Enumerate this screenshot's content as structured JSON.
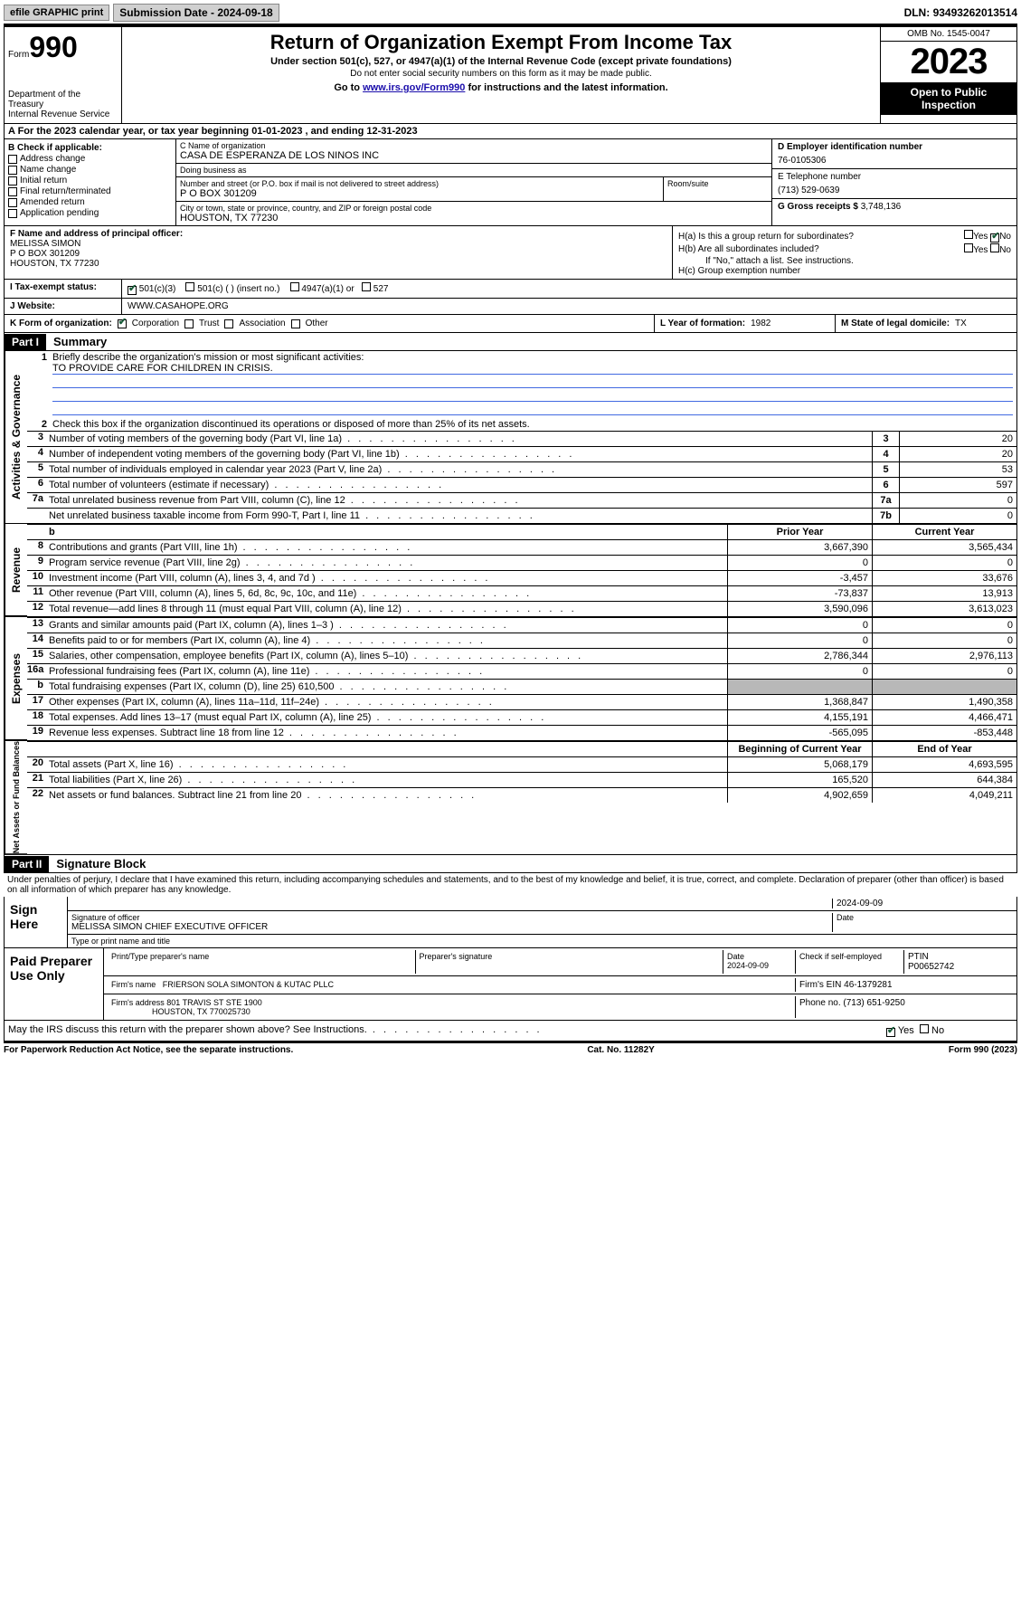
{
  "topbar": {
    "efile": "efile GRAPHIC print",
    "subdate_label": "Submission Date - ",
    "subdate": "2024-09-18",
    "dln_label": "DLN: ",
    "dln": "93493262013514"
  },
  "header": {
    "form_prefix": "Form",
    "form_no": "990",
    "dept": "Department of the Treasury\nInternal Revenue Service",
    "title": "Return of Organization Exempt From Income Tax",
    "sub1": "Under section 501(c), 527, or 4947(a)(1) of the Internal Revenue Code (except private foundations)",
    "sub2": "Do not enter social security numbers on this form as it may be made public.",
    "goto_pre": "Go to ",
    "goto_link": "www.irs.gov/Form990",
    "goto_post": " for instructions and the latest information.",
    "omb": "OMB No. 1545-0047",
    "year": "2023",
    "otp": "Open to Public Inspection"
  },
  "rowA": {
    "text": "A For the 2023 calendar year, or tax year beginning 01-01-2023   , and ending 12-31-2023"
  },
  "B": {
    "label": "B Check if applicable:",
    "items": [
      "Address change",
      "Name change",
      "Initial return",
      "Final return/terminated",
      "Amended return",
      "Application pending"
    ]
  },
  "C": {
    "name_label": "C Name of organization",
    "name": "CASA DE ESPERANZA DE LOS NINOS INC",
    "dba_label": "Doing business as",
    "dba": "",
    "addr_label": "Number and street (or P.O. box if mail is not delivered to street address)",
    "room_label": "Room/suite",
    "addr": "P O BOX 301209",
    "city_label": "City or town, state or province, country, and ZIP or foreign postal code",
    "city": "HOUSTON, TX  77230"
  },
  "D": {
    "label": "D Employer identification number",
    "val": "76-0105306"
  },
  "E": {
    "label": "E Telephone number",
    "val": "(713) 529-0639"
  },
  "G": {
    "label": "G Gross receipts $ ",
    "val": "3,748,136"
  },
  "F": {
    "label": "F  Name and address of principal officer:",
    "name": "MELISSA SIMON",
    "addr1": "P O BOX 301209",
    "addr2": "HOUSTON, TX  77230"
  },
  "H": {
    "a": "H(a)  Is this a group return for subordinates?",
    "a_yes": "Yes",
    "a_no": "No",
    "b": "H(b)  Are all subordinates included?",
    "b_note": "If \"No,\" attach a list. See instructions.",
    "c": "H(c)  Group exemption number"
  },
  "I": {
    "label": "I   Tax-exempt status:",
    "opts": [
      "501(c)(3)",
      "501(c) (  ) (insert no.)",
      "4947(a)(1) or",
      "527"
    ]
  },
  "J": {
    "label": "J   Website:",
    "val": "WWW.CASAHOPE.ORG"
  },
  "K": {
    "label": "K Form of organization:",
    "opts": [
      "Corporation",
      "Trust",
      "Association",
      "Other"
    ]
  },
  "L": {
    "label": "L Year of formation: ",
    "val": "1982"
  },
  "M": {
    "label": "M State of legal domicile: ",
    "val": "TX"
  },
  "part1": {
    "num": "Part I",
    "title": "Summary"
  },
  "summary": {
    "l1_label": "Briefly describe the organization's mission or most significant activities:",
    "l1_val": "TO PROVIDE CARE FOR CHILDREN IN CRISIS.",
    "l2": "Check this box       if the organization discontinued its operations or disposed of more than 25% of its net assets.",
    "rows_gov": [
      {
        "n": "3",
        "t": "Number of voting members of the governing body (Part VI, line 1a)",
        "k": "3",
        "v": "20"
      },
      {
        "n": "4",
        "t": "Number of independent voting members of the governing body (Part VI, line 1b)",
        "k": "4",
        "v": "20"
      },
      {
        "n": "5",
        "t": "Total number of individuals employed in calendar year 2023 (Part V, line 2a)",
        "k": "5",
        "v": "53"
      },
      {
        "n": "6",
        "t": "Total number of volunteers (estimate if necessary)",
        "k": "6",
        "v": "597"
      },
      {
        "n": "7a",
        "t": "Total unrelated business revenue from Part VIII, column (C), line 12",
        "k": "7a",
        "v": "0"
      },
      {
        "n": "",
        "t": "Net unrelated business taxable income from Form 990-T, Part I, line 11",
        "k": "7b",
        "v": "0"
      }
    ],
    "col_prior": "Prior Year",
    "col_current": "Current Year",
    "revenue": [
      {
        "n": "8",
        "t": "Contributions and grants (Part VIII, line 1h)",
        "p": "3,667,390",
        "c": "3,565,434"
      },
      {
        "n": "9",
        "t": "Program service revenue (Part VIII, line 2g)",
        "p": "0",
        "c": "0"
      },
      {
        "n": "10",
        "t": "Investment income (Part VIII, column (A), lines 3, 4, and 7d )",
        "p": "-3,457",
        "c": "33,676"
      },
      {
        "n": "11",
        "t": "Other revenue (Part VIII, column (A), lines 5, 6d, 8c, 9c, 10c, and 11e)",
        "p": "-73,837",
        "c": "13,913"
      },
      {
        "n": "12",
        "t": "Total revenue—add lines 8 through 11 (must equal Part VIII, column (A), line 12)",
        "p": "3,590,096",
        "c": "3,613,023"
      }
    ],
    "expenses": [
      {
        "n": "13",
        "t": "Grants and similar amounts paid (Part IX, column (A), lines 1–3 )",
        "p": "0",
        "c": "0"
      },
      {
        "n": "14",
        "t": "Benefits paid to or for members (Part IX, column (A), line 4)",
        "p": "0",
        "c": "0"
      },
      {
        "n": "15",
        "t": "Salaries, other compensation, employee benefits (Part IX, column (A), lines 5–10)",
        "p": "2,786,344",
        "c": "2,976,113"
      },
      {
        "n": "16a",
        "t": "Professional fundraising fees (Part IX, column (A), line 11e)",
        "p": "0",
        "c": "0"
      },
      {
        "n": "b",
        "t": "Total fundraising expenses (Part IX, column (D), line 25) 610,500",
        "p": "",
        "c": "",
        "grey": true
      },
      {
        "n": "17",
        "t": "Other expenses (Part IX, column (A), lines 11a–11d, 11f–24e)",
        "p": "1,368,847",
        "c": "1,490,358"
      },
      {
        "n": "18",
        "t": "Total expenses. Add lines 13–17 (must equal Part IX, column (A), line 25)",
        "p": "4,155,191",
        "c": "4,466,471"
      },
      {
        "n": "19",
        "t": "Revenue less expenses. Subtract line 18 from line 12",
        "p": "-565,095",
        "c": "-853,448"
      }
    ],
    "col_boy": "Beginning of Current Year",
    "col_eoy": "End of Year",
    "net": [
      {
        "n": "20",
        "t": "Total assets (Part X, line 16)",
        "p": "5,068,179",
        "c": "4,693,595"
      },
      {
        "n": "21",
        "t": "Total liabilities (Part X, line 26)",
        "p": "165,520",
        "c": "644,384"
      },
      {
        "n": "22",
        "t": "Net assets or fund balances. Subtract line 21 from line 20",
        "p": "4,902,659",
        "c": "4,049,211"
      }
    ]
  },
  "vt": {
    "gov": "Activities & Governance",
    "rev": "Revenue",
    "exp": "Expenses",
    "net": "Net Assets or Fund Balances"
  },
  "part2": {
    "num": "Part II",
    "title": "Signature Block"
  },
  "declare": "Under penalties of perjury, I declare that I have examined this return, including accompanying schedules and statements, and to the best of my knowledge and belief, it is true, correct, and complete. Declaration of preparer (other than officer) is based on all information of which preparer has any knowledge.",
  "sign": {
    "here": "Sign Here",
    "sig_label": "Signature of officer",
    "date_label": "Date",
    "date1": "2024-09-09",
    "officer": "MELISSA SIMON  CHIEF EXECUTIVE OFFICER",
    "type_label": "Type or print name and title"
  },
  "paid": {
    "label": "Paid Preparer Use Only",
    "prep_name_label": "Print/Type preparer's name",
    "prep_sig_label": "Preparer's signature",
    "date_label": "Date",
    "date": "2024-09-09",
    "selfemp": "Check        if self-employed",
    "ptin_label": "PTIN",
    "ptin": "P00652742",
    "firm_name_label": "Firm's name",
    "firm_name": "FRIERSON SOLA SIMONTON & KUTAC PLLC",
    "firm_ein_label": "Firm's EIN",
    "firm_ein": "46-1379281",
    "firm_addr_label": "Firm's address",
    "firm_addr1": "801 TRAVIS ST STE 1900",
    "firm_addr2": "HOUSTON, TX  770025730",
    "phone_label": "Phone no.",
    "phone": "(713) 651-9250"
  },
  "discuss": "May the IRS discuss this return with the preparer shown above? See Instructions.",
  "discuss_yes": "Yes",
  "discuss_no": "No",
  "footer": {
    "pra": "For Paperwork Reduction Act Notice, see the separate instructions.",
    "cat": "Cat. No. 11282Y",
    "form": "Form 990 (2023)"
  }
}
